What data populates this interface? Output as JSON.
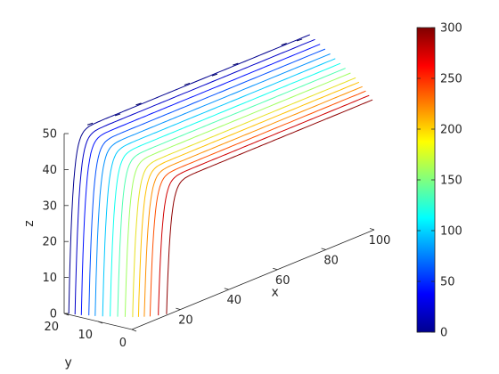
{
  "chart_data": {
    "type": "line",
    "projection": "3d",
    "xlabel": "x",
    "ylabel": "y",
    "zlabel": "z",
    "x_ticks": [
      20,
      40,
      60,
      80,
      100
    ],
    "y_ticks": [
      0,
      10,
      20
    ],
    "z_ticks": [
      0,
      10,
      20,
      30,
      40,
      50
    ],
    "xlim": [
      0,
      100
    ],
    "ylim": [
      0,
      20
    ],
    "zlim": [
      0,
      50
    ],
    "grid": false,
    "colormap": "jet",
    "colorbar": {
      "location": "right",
      "min": 0,
      "max": 300,
      "ticks": [
        0,
        50,
        100,
        150,
        200,
        250,
        300
      ]
    },
    "curve_shape": "z = z_top * (1 - exp(-(x - x_start) / 1.6)), y constant per curve",
    "series": [
      {
        "y": 19.0,
        "x_start": 0.5,
        "x_end": 100,
        "z_top": 50,
        "color": "#00008f"
      },
      {
        "y": 17.5,
        "x_start": 1.0,
        "x_end": 100,
        "z_top": 49,
        "color": "#0000c8"
      },
      {
        "y": 16.0,
        "x_start": 1.5,
        "x_end": 100,
        "z_top": 48,
        "color": "#0010ff"
      },
      {
        "y": 14.5,
        "x_start": 2.5,
        "x_end": 100,
        "z_top": 47,
        "color": "#0050ff"
      },
      {
        "y": 13.0,
        "x_start": 3.0,
        "x_end": 100,
        "z_top": 46,
        "color": "#0090ff"
      },
      {
        "y": 11.5,
        "x_start": 4.0,
        "x_end": 100,
        "z_top": 45,
        "color": "#00c8ff"
      },
      {
        "y": 10.0,
        "x_start": 5.0,
        "x_end": 100,
        "z_top": 44,
        "color": "#10ffef"
      },
      {
        "y": 8.5,
        "x_start": 6.0,
        "x_end": 100,
        "z_top": 43,
        "color": "#50ffb0"
      },
      {
        "y": 7.0,
        "x_start": 7.0,
        "x_end": 100,
        "z_top": 42,
        "color": "#a0ff60"
      },
      {
        "y": 5.5,
        "x_start": 8.0,
        "x_end": 100,
        "z_top": 41,
        "color": "#e8e020"
      },
      {
        "y": 4.5,
        "x_start": 9.0,
        "x_end": 100,
        "z_top": 40,
        "color": "#ffc000"
      },
      {
        "y": 3.5,
        "x_start": 10.0,
        "x_end": 100,
        "z_top": 39,
        "color": "#ff9000"
      },
      {
        "y": 2.5,
        "x_start": 11.0,
        "x_end": 100,
        "z_top": 38,
        "color": "#ff5000"
      },
      {
        "y": 1.5,
        "x_start": 13.0,
        "x_end": 100,
        "z_top": 37,
        "color": "#d00000"
      },
      {
        "y": 0.5,
        "x_start": 15.0,
        "x_end": 100,
        "z_top": 36,
        "color": "#8f0000"
      }
    ],
    "markers": [
      {
        "y": 19.5,
        "x": 10,
        "z": 50
      },
      {
        "y": 19.5,
        "x": 30,
        "z": 50
      },
      {
        "y": 19.5,
        "x": 50,
        "z": 50
      },
      {
        "y": 19.5,
        "x": 70,
        "z": 50
      },
      {
        "y": 19.5,
        "x": 90,
        "z": 50
      },
      {
        "y": 18.5,
        "x": 20,
        "z": 50
      },
      {
        "y": 18.5,
        "x": 60,
        "z": 50
      },
      {
        "y": 18.5,
        "x": 95,
        "z": 50
      }
    ]
  }
}
